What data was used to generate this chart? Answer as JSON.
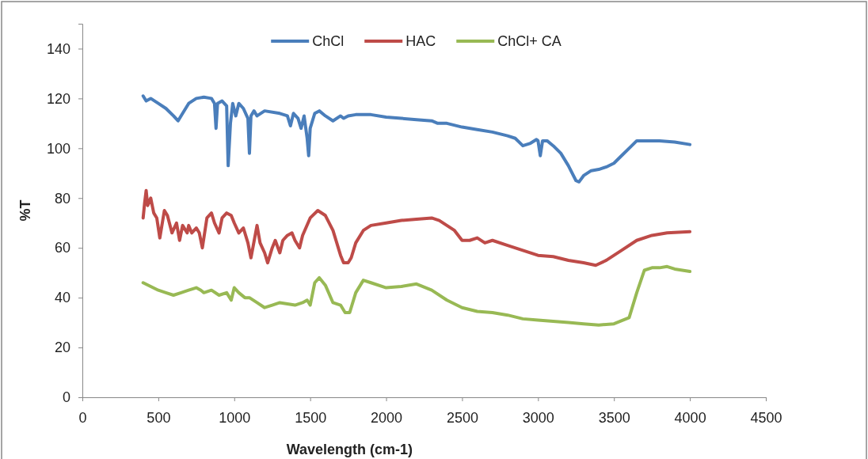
{
  "chart_data": {
    "type": "line",
    "xlabel": "Wavelength (cm-1)",
    "ylabel": "%T",
    "xlim": [
      0,
      4500
    ],
    "xticks": [
      0,
      500,
      1000,
      1500,
      2000,
      2500,
      3000,
      3500,
      4000,
      4500
    ],
    "ylim": [
      0,
      150
    ],
    "yticks": [
      0,
      20,
      40,
      60,
      80,
      100,
      120,
      140
    ],
    "grid": false,
    "legend": "top",
    "marker": "none",
    "line_style": "solid",
    "series": [
      {
        "name": "ChCl",
        "color": "#4a7ebb",
        "x": [
          400,
          420,
          450,
          500,
          550,
          600,
          630,
          660,
          700,
          750,
          800,
          850,
          870,
          880,
          890,
          920,
          950,
          960,
          975,
          990,
          1010,
          1030,
          1060,
          1090,
          1100,
          1110,
          1130,
          1150,
          1200,
          1300,
          1350,
          1370,
          1390,
          1420,
          1440,
          1460,
          1480,
          1490,
          1500,
          1530,
          1560,
          1600,
          1650,
          1700,
          1720,
          1750,
          1800,
          1900,
          2000,
          2100,
          2200,
          2300,
          2340,
          2400,
          2500,
          2600,
          2700,
          2800,
          2850,
          2900,
          2950,
          2990,
          3000,
          3015,
          3030,
          3060,
          3100,
          3150,
          3200,
          3250,
          3270,
          3300,
          3350,
          3400,
          3450,
          3500,
          3550,
          3600,
          3650,
          3700,
          3800,
          3900,
          4000
        ],
        "values": [
          121,
          119,
          120,
          118,
          116,
          113,
          111,
          114,
          118,
          120,
          120.5,
          120,
          118,
          108,
          118,
          119,
          117,
          93,
          110,
          118,
          113,
          118,
          116,
          112,
          98,
          113,
          115,
          113,
          115,
          114,
          113,
          109,
          114,
          112,
          108,
          113,
          104,
          97,
          108,
          114,
          115,
          113,
          111,
          113,
          112,
          113,
          113.5,
          113.5,
          112.5,
          112,
          111.5,
          111,
          110,
          110,
          108.5,
          107.5,
          106.5,
          105,
          104,
          101,
          102,
          103.5,
          103,
          97,
          103,
          103,
          101,
          98,
          93,
          87,
          86.5,
          89,
          91,
          91.5,
          92.5,
          94,
          97,
          100,
          103,
          103,
          103,
          102.5,
          101.5
        ]
      },
      {
        "name": "HAC",
        "color": "#be4b48",
        "x": [
          400,
          410,
          420,
          430,
          450,
          470,
          490,
          510,
          540,
          560,
          590,
          620,
          640,
          660,
          690,
          700,
          720,
          750,
          770,
          790,
          820,
          850,
          870,
          900,
          920,
          950,
          980,
          1000,
          1030,
          1060,
          1090,
          1110,
          1150,
          1170,
          1200,
          1220,
          1250,
          1270,
          1300,
          1320,
          1350,
          1380,
          1400,
          1430,
          1450,
          1500,
          1550,
          1600,
          1650,
          1700,
          1720,
          1750,
          1770,
          1800,
          1850,
          1900,
          2000,
          2100,
          2200,
          2300,
          2350,
          2400,
          2450,
          2500,
          2550,
          2600,
          2650,
          2700,
          2800,
          2900,
          3000,
          3100,
          3200,
          3300,
          3380,
          3450,
          3550,
          3650,
          3750,
          3850,
          4000
        ],
        "values": [
          72,
          78,
          83,
          77,
          80,
          74,
          72,
          64,
          75,
          73,
          66,
          70,
          63,
          69,
          66,
          69,
          66,
          68,
          66,
          60,
          72,
          74,
          70,
          66,
          72,
          74,
          73,
          70,
          66,
          68,
          62,
          56,
          69,
          62,
          58,
          54,
          60,
          63,
          58,
          63,
          65,
          66,
          63,
          60,
          65,
          72,
          75,
          73,
          67,
          57,
          54,
          54,
          56,
          62,
          67,
          69,
          70,
          71,
          71.5,
          72,
          71,
          69,
          67,
          63,
          63,
          64,
          62,
          63,
          61,
          59,
          57,
          56.5,
          55,
          54,
          53,
          55,
          59,
          63,
          65,
          66,
          66.5
        ]
      },
      {
        "name": "ChCl+ CA",
        "color": "#98b954",
        "x": [
          400,
          450,
          500,
          550,
          600,
          650,
          700,
          750,
          780,
          800,
          850,
          900,
          950,
          980,
          1000,
          1030,
          1070,
          1100,
          1150,
          1200,
          1250,
          1300,
          1400,
          1450,
          1480,
          1500,
          1530,
          1560,
          1600,
          1650,
          1700,
          1730,
          1760,
          1800,
          1850,
          1900,
          2000,
          2100,
          2200,
          2300,
          2400,
          2500,
          2600,
          2700,
          2800,
          2900,
          3000,
          3100,
          3200,
          3300,
          3400,
          3500,
          3600,
          3650,
          3700,
          3750,
          3800,
          3850,
          3900,
          4000
        ],
        "values": [
          46,
          44.5,
          43,
          42,
          41,
          42,
          43,
          44,
          43,
          42,
          43,
          41,
          42,
          39,
          44,
          42,
          40,
          40,
          38,
          36,
          37,
          38,
          37,
          38,
          39,
          37,
          46,
          48,
          45,
          38,
          37,
          34,
          34,
          42,
          47,
          46,
          44,
          44.5,
          45.5,
          43,
          39,
          36,
          34.5,
          34,
          33,
          31.5,
          31,
          30.5,
          30,
          29.5,
          29,
          29.5,
          32,
          42,
          51,
          52,
          52,
          52.5,
          51.5,
          50.5
        ]
      }
    ]
  }
}
